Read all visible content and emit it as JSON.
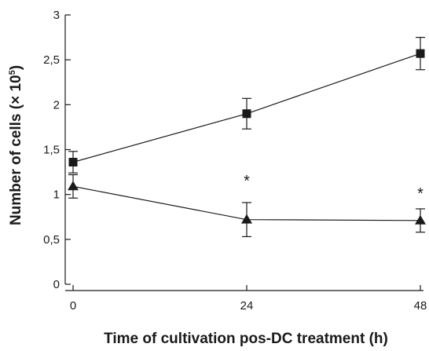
{
  "chart_data": {
    "type": "line",
    "xlabel": "Time of cultivation pos-DC treatment (h)",
    "ylabel": {
      "prefix": "Number of cells (× 10",
      "superscript": "5",
      "suffix": ")"
    },
    "xlim": [
      0,
      48
    ],
    "ylim": [
      0,
      3
    ],
    "x_ticks": [
      0,
      24,
      48
    ],
    "x_tick_labels": [
      "0",
      "24",
      "48"
    ],
    "y_ticks": [
      0,
      0.5,
      1,
      1.5,
      2,
      2.5,
      3
    ],
    "y_tick_labels": [
      "0",
      "0,5",
      "1",
      "1,5",
      "2",
      "2,5",
      "3"
    ],
    "grid": false,
    "series": [
      {
        "marker": "square",
        "x": [
          0,
          24,
          48
        ],
        "y": [
          1.36,
          1.9,
          2.57
        ],
        "error": [
          0.12,
          0.17,
          0.18
        ]
      },
      {
        "marker": "triangle",
        "x": [
          0,
          24,
          48
        ],
        "y": [
          1.09,
          0.72,
          0.71
        ],
        "error": [
          0.13,
          0.19,
          0.13
        ]
      }
    ],
    "annotations": [
      {
        "text": "*",
        "x": 24,
        "y": 1.18
      },
      {
        "text": "*",
        "x": 48,
        "y": 1.04
      }
    ],
    "color": "#1a1a1a"
  }
}
